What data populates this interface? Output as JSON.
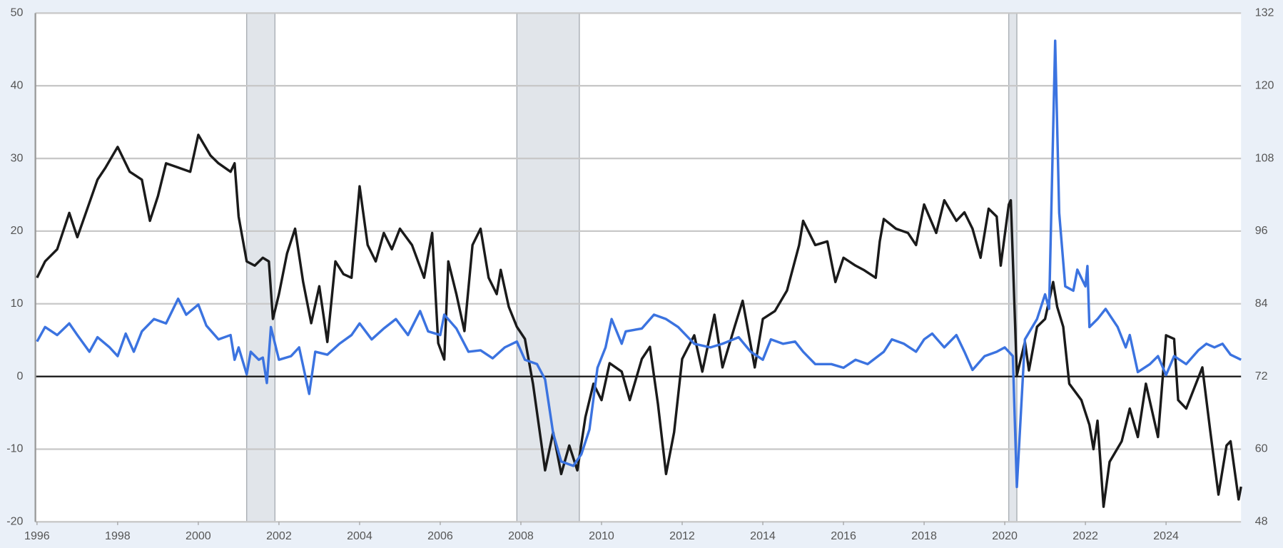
{
  "chart_data": {
    "type": "line",
    "xlim": [
      1995.96,
      2025.86
    ],
    "xticks": [
      1996,
      1998,
      2000,
      2002,
      2004,
      2006,
      2008,
      2010,
      2012,
      2014,
      2016,
      2018,
      2020,
      2022,
      2024
    ],
    "ylim": [
      -20,
      50
    ],
    "yticks": [
      -20,
      -10,
      0,
      10,
      20,
      30,
      40,
      50
    ],
    "y2lim": [
      48,
      132
    ],
    "y2ticks": [
      48,
      60,
      72,
      84,
      96,
      108,
      120,
      132
    ],
    "grid": true,
    "recessions": [
      [
        2001.2,
        2001.9
      ],
      [
        2007.9,
        2009.45
      ],
      [
        2020.1,
        2020.3
      ]
    ],
    "recession_color": "#e1e5ea",
    "series": [
      {
        "color": "#1a1a1a",
        "axis": "y2",
        "x": [
          1996.0,
          1996.2,
          1996.5,
          1996.8,
          1997.0,
          1997.2,
          1997.5,
          1997.7,
          1998.0,
          1998.3,
          1998.6,
          1998.8,
          1999.0,
          1999.2,
          1999.5,
          1999.8,
          2000.0,
          2000.3,
          2000.5,
          2000.8,
          2000.9,
          2001.0,
          2001.2,
          2001.4,
          2001.6,
          2001.75,
          2001.85,
          2002.0,
          2002.2,
          2002.4,
          2002.6,
          2002.8,
          2003.0,
          2003.2,
          2003.4,
          2003.6,
          2003.8,
          2004.0,
          2004.2,
          2004.4,
          2004.6,
          2004.8,
          2005.0,
          2005.3,
          2005.6,
          2005.8,
          2005.95,
          2006.1,
          2006.2,
          2006.4,
          2006.6,
          2006.8,
          2007.0,
          2007.2,
          2007.4,
          2007.5,
          2007.7,
          2007.9,
          2008.1,
          2008.3,
          2008.5,
          2008.6,
          2008.8,
          2009.0,
          2009.2,
          2009.4,
          2009.6,
          2009.8,
          2010.0,
          2010.2,
          2010.5,
          2010.7,
          2011.0,
          2011.2,
          2011.4,
          2011.6,
          2011.8,
          2012.0,
          2012.3,
          2012.5,
          2012.8,
          2013.0,
          2013.3,
          2013.5,
          2013.8,
          2014.0,
          2014.3,
          2014.6,
          2014.9,
          2015.0,
          2015.3,
          2015.6,
          2015.8,
          2016.0,
          2016.3,
          2016.5,
          2016.8,
          2016.9,
          2017.0,
          2017.3,
          2017.6,
          2017.8,
          2018.0,
          2018.3,
          2018.5,
          2018.8,
          2019.0,
          2019.2,
          2019.4,
          2019.6,
          2019.8,
          2019.9,
          2020.1,
          2020.15,
          2020.3,
          2020.5,
          2020.6,
          2020.8,
          2021.0,
          2021.2,
          2021.3,
          2021.45,
          2021.6,
          2021.9,
          2022.1,
          2022.2,
          2022.3,
          2022.45,
          2022.6,
          2022.9,
          2023.1,
          2023.3,
          2023.5,
          2023.8,
          2024.0,
          2024.2,
          2024.3,
          2024.5,
          2024.7,
          2024.9,
          2025.1,
          2025.3,
          2025.5,
          2025.6,
          2025.8,
          2025.86
        ],
        "values": [
          88.3,
          91,
          93,
          99,
          95,
          98.8,
          104.5,
          106.5,
          109.9,
          105.8,
          104.5,
          97.7,
          101.8,
          107.2,
          106.5,
          105.8,
          111.9,
          108.5,
          107.2,
          105.8,
          107.2,
          98.4,
          91,
          90.3,
          91.6,
          91,
          81.5,
          85.6,
          92.3,
          96.4,
          87.6,
          80.8,
          86.9,
          77.7,
          91,
          88.9,
          88.3,
          103.4,
          93.7,
          91,
          95.7,
          93,
          96.4,
          93.7,
          88.3,
          95.7,
          77.5,
          74.8,
          91,
          85.6,
          79.5,
          93.7,
          96.4,
          88.3,
          85.6,
          89.6,
          83.5,
          80.2,
          78.2,
          70.8,
          61.3,
          56.5,
          62.8,
          55.9,
          60.6,
          56.5,
          65.3,
          70.8,
          68.1,
          74.2,
          72.8,
          68.1,
          74.9,
          76.9,
          67.4,
          55.9,
          62.8,
          74.9,
          78.8,
          72.8,
          82.2,
          73.5,
          80.2,
          84.5,
          73.5,
          81.5,
          82.8,
          86.2,
          93.7,
          97.7,
          93.7,
          94.3,
          87.6,
          91.6,
          90.3,
          89.6,
          88.3,
          94.3,
          98,
          96.4,
          95.7,
          93.7,
          100.4,
          95.7,
          101.1,
          97.7,
          99.1,
          96.4,
          91.6,
          99.7,
          98.4,
          90.3,
          100.4,
          101.1,
          72.2,
          77.7,
          73,
          80.2,
          81.5,
          87.6,
          83.5,
          80.2,
          70.8,
          68.1,
          64,
          60,
          64.7,
          50.5,
          57.9,
          61.3,
          66.7,
          62,
          70.8,
          62,
          78.8,
          78.2,
          68.1,
          66.7,
          70.1,
          73.5,
          62.8,
          52.5,
          60.6,
          61.3,
          51.7,
          53.8
        ]
      },
      {
        "color": "#3b73e0",
        "axis": "y",
        "x": [
          1996.0,
          1996.2,
          1996.5,
          1996.8,
          1997.0,
          1997.3,
          1997.5,
          1997.8,
          1998.0,
          1998.2,
          1998.4,
          1998.6,
          1998.9,
          1999.2,
          1999.5,
          1999.7,
          2000.0,
          2000.2,
          2000.5,
          2000.8,
          2000.9,
          2001.0,
          2001.2,
          2001.3,
          2001.5,
          2001.6,
          2001.7,
          2001.8,
          2002.0,
          2002.3,
          2002.5,
          2002.75,
          2002.9,
          2003.2,
          2003.5,
          2003.8,
          2004.0,
          2004.3,
          2004.6,
          2004.9,
          2005.2,
          2005.5,
          2005.7,
          2006.0,
          2006.1,
          2006.4,
          2006.7,
          2007.0,
          2007.3,
          2007.6,
          2007.9,
          2008.1,
          2008.4,
          2008.6,
          2008.8,
          2009.0,
          2009.3,
          2009.5,
          2009.7,
          2009.9,
          2010.1,
          2010.25,
          2010.5,
          2010.6,
          2011.0,
          2011.3,
          2011.6,
          2011.9,
          2012.3,
          2012.7,
          2013.0,
          2013.4,
          2013.7,
          2014.0,
          2014.2,
          2014.5,
          2014.8,
          2015.0,
          2015.3,
          2015.7,
          2016.0,
          2016.3,
          2016.6,
          2017.0,
          2017.2,
          2017.5,
          2017.8,
          2018.0,
          2018.2,
          2018.5,
          2018.8,
          2019.0,
          2019.2,
          2019.5,
          2019.8,
          2020.0,
          2020.2,
          2020.3,
          2020.5,
          2020.8,
          2021.0,
          2021.1,
          2021.25,
          2021.35,
          2021.5,
          2021.7,
          2021.8,
          2022.0,
          2022.05,
          2022.1,
          2022.3,
          2022.5,
          2022.8,
          2023.0,
          2023.1,
          2023.3,
          2023.6,
          2023.8,
          2024.0,
          2024.2,
          2024.5,
          2024.8,
          2025.0,
          2025.2,
          2025.4,
          2025.6,
          2025.86
        ],
        "values": [
          4.8,
          6.8,
          5.7,
          7.3,
          5.7,
          3.4,
          5.4,
          4.0,
          2.8,
          5.9,
          3.4,
          6.2,
          7.9,
          7.3,
          10.7,
          8.5,
          9.9,
          7.0,
          5.1,
          5.7,
          2.3,
          4.0,
          0.3,
          3.4,
          2.3,
          2.6,
          -0.9,
          6.8,
          2.3,
          2.8,
          4.0,
          -2.4,
          3.4,
          3.0,
          4.5,
          5.7,
          7.3,
          5.1,
          6.6,
          7.9,
          5.7,
          9.0,
          6.2,
          5.7,
          8.5,
          6.6,
          3.4,
          3.6,
          2.5,
          4.0,
          4.8,
          2.3,
          1.7,
          -0.4,
          -7.8,
          -11.7,
          -12.3,
          -10.7,
          -7.3,
          1.2,
          4.0,
          7.9,
          4.5,
          6.2,
          6.6,
          8.5,
          7.9,
          6.8,
          4.5,
          4.0,
          4.5,
          5.4,
          3.4,
          2.3,
          5.1,
          4.5,
          4.8,
          3.4,
          1.7,
          1.7,
          1.2,
          2.3,
          1.7,
          3.4,
          5.1,
          4.5,
          3.4,
          5.1,
          5.9,
          4.0,
          5.7,
          3.4,
          0.9,
          2.8,
          3.4,
          4.0,
          2.8,
          -15.2,
          5.1,
          7.9,
          11.3,
          9.3,
          46.2,
          22.5,
          12.4,
          11.8,
          14.7,
          12.4,
          15.2,
          6.8,
          7.9,
          9.3,
          6.8,
          4.0,
          5.7,
          0.6,
          1.7,
          2.8,
          0.2,
          2.8,
          1.7,
          3.6,
          4.5,
          4.0,
          4.5,
          3.0,
          2.3
        ]
      }
    ]
  }
}
